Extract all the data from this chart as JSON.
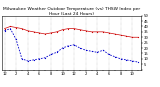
{
  "title": "Milwaukee Weather Outdoor Temperature (vs) THSW Index per Hour (Last 24 Hours)",
  "title_fontsize": 3.2,
  "hours": [
    0,
    1,
    2,
    3,
    4,
    5,
    6,
    7,
    8,
    9,
    10,
    11,
    12,
    13,
    14,
    15,
    16,
    17,
    18,
    19,
    20,
    21,
    22,
    23
  ],
  "temp": [
    38,
    40,
    39,
    38,
    36,
    35,
    34,
    33,
    34,
    35,
    37,
    38,
    38,
    37,
    36,
    35,
    35,
    35,
    34,
    33,
    32,
    31,
    30,
    30
  ],
  "thsw": [
    36,
    38,
    28,
    10,
    8,
    9,
    10,
    11,
    14,
    16,
    20,
    22,
    23,
    20,
    18,
    17,
    16,
    18,
    14,
    12,
    10,
    9,
    8,
    7
  ],
  "temp_color": "#cc0000",
  "thsw_color": "#0000cc",
  "background": "#ffffff",
  "ylim_min": 0,
  "ylim_max": 50,
  "ytick_values": [
    50,
    45,
    40,
    35,
    30,
    25,
    20,
    15,
    10,
    5,
    0
  ],
  "ytick_labels": [
    "50",
    "45",
    "40",
    "35",
    "30",
    "25",
    "20",
    "15",
    "10",
    "5",
    ""
  ],
  "xtick_positions": [
    0,
    2,
    4,
    6,
    8,
    10,
    12,
    14,
    16,
    18,
    20,
    22
  ],
  "xtick_labels": [
    "12",
    "2",
    "4",
    "6",
    "8",
    "10",
    "12",
    "2",
    "4",
    "6",
    "8",
    "10"
  ],
  "xlabel_fontsize": 2.8,
  "ylabel_fontsize": 2.8,
  "marker_size": 0.8,
  "grid_color": "#aaaaaa",
  "axis_color": "#000000",
  "figsize": [
    1.6,
    0.87
  ],
  "dpi": 100
}
